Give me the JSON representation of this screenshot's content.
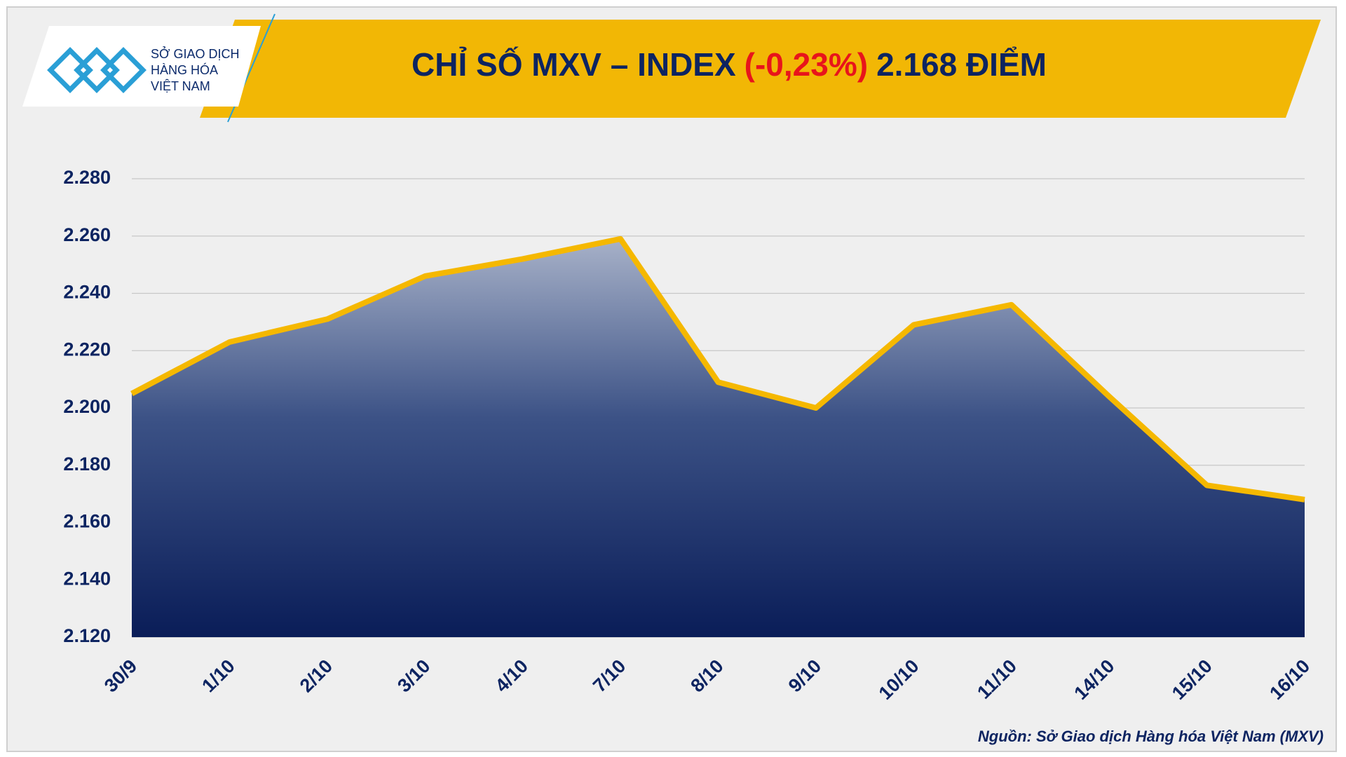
{
  "header": {
    "logo_lines": [
      "SỞ GIAO DỊCH",
      "HÀNG HÓA",
      "VIỆT NAM"
    ]
  },
  "chart_data": {
    "type": "area",
    "title": [
      "CHỈ SỐ MXV – INDEX",
      "(-0,23%)",
      "2.168 ĐIỂM"
    ],
    "categories": [
      "30/9",
      "1/10",
      "2/10",
      "3/10",
      "4/10",
      "7/10",
      "8/10",
      "9/10",
      "10/10",
      "11/10",
      "14/10",
      "15/10",
      "16/10"
    ],
    "values": [
      2205,
      2223,
      2231,
      2246,
      2252,
      2259,
      2209,
      2200,
      2229,
      2236,
      2204,
      2173,
      2168
    ],
    "color": "#f5b800",
    "ylim": [
      2120,
      2280
    ],
    "yticks": [
      {
        "value": 2120,
        "label": "2.120"
      },
      {
        "value": 2140,
        "label": "2.140"
      },
      {
        "value": 2160,
        "label": "2.160"
      },
      {
        "value": 2180,
        "label": "2.180"
      },
      {
        "value": 2200,
        "label": "2.200"
      },
      {
        "value": 2220,
        "label": "2.220"
      },
      {
        "value": 2240,
        "label": "2.240"
      },
      {
        "value": 2260,
        "label": "2.260"
      },
      {
        "value": 2280,
        "label": "2.280"
      }
    ],
    "grid": true,
    "source": "Nguồn: Sở Giao dịch Hàng hóa Việt Nam (MXV)"
  }
}
